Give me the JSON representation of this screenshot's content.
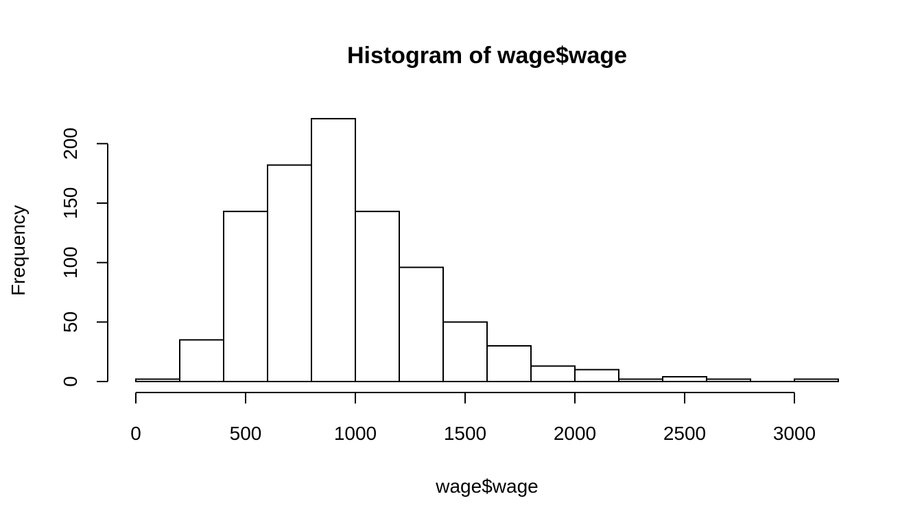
{
  "chart_data": {
    "type": "bar",
    "title": "Histogram of wage$wage",
    "xlabel": "wage$wage",
    "ylabel": "Frequency",
    "xlim": [
      0,
      3200
    ],
    "ylim": [
      0,
      220
    ],
    "x_ticks": [
      0,
      500,
      1000,
      1500,
      2000,
      2500,
      3000
    ],
    "y_ticks": [
      0,
      50,
      100,
      150,
      200
    ],
    "bins": [
      {
        "start": 0,
        "end": 200,
        "count": 2
      },
      {
        "start": 200,
        "end": 400,
        "count": 35
      },
      {
        "start": 400,
        "end": 600,
        "count": 143
      },
      {
        "start": 600,
        "end": 800,
        "count": 182
      },
      {
        "start": 800,
        "end": 1000,
        "count": 221
      },
      {
        "start": 1000,
        "end": 1200,
        "count": 143
      },
      {
        "start": 1200,
        "end": 1400,
        "count": 96
      },
      {
        "start": 1400,
        "end": 1600,
        "count": 50
      },
      {
        "start": 1600,
        "end": 1800,
        "count": 30
      },
      {
        "start": 1800,
        "end": 2000,
        "count": 13
      },
      {
        "start": 2000,
        "end": 2200,
        "count": 10
      },
      {
        "start": 2200,
        "end": 2400,
        "count": 2
      },
      {
        "start": 2400,
        "end": 2600,
        "count": 4
      },
      {
        "start": 2600,
        "end": 2800,
        "count": 2
      },
      {
        "start": 2800,
        "end": 3000,
        "count": 0
      },
      {
        "start": 3000,
        "end": 3200,
        "count": 2
      }
    ],
    "grid": false,
    "legend": "none"
  }
}
